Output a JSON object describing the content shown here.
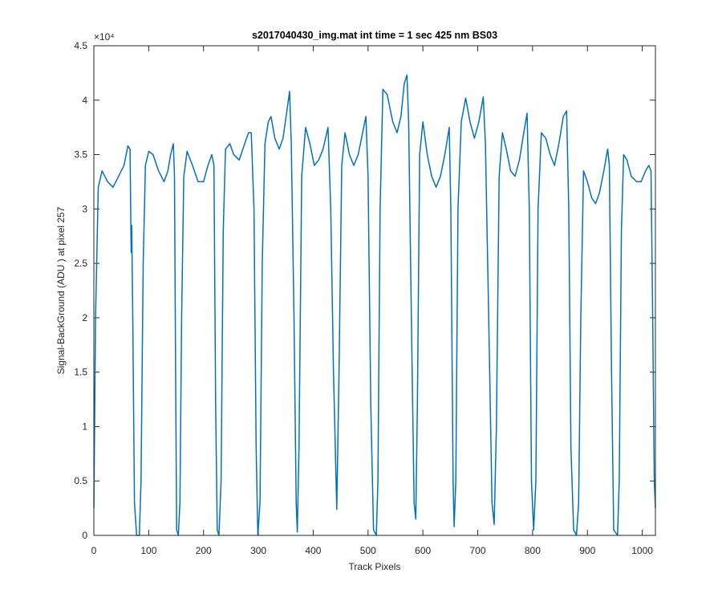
{
  "chart_data": {
    "type": "line",
    "title": "s2017040430_img.mat int time = 1 sec  425 nm BS03",
    "x_label": "Track Pixels",
    "y_label": "Signal-BackGround (ADU ) at pixel 257",
    "y_exponent_label": "×10⁴",
    "color": "#0072bd",
    "xlim": [
      0,
      1024
    ],
    "xticks": [
      0,
      100,
      200,
      300,
      400,
      500,
      600,
      700,
      800,
      900,
      1000
    ],
    "ylim": [
      0,
      45000
    ],
    "yticks": [
      {
        "value": 0,
        "label": "0"
      },
      {
        "value": 5000,
        "label": "0.5"
      },
      {
        "value": 10000,
        "label": "1"
      },
      {
        "value": 15000,
        "label": "1.5"
      },
      {
        "value": 20000,
        "label": "2"
      },
      {
        "value": 25000,
        "label": "2.5"
      },
      {
        "value": 30000,
        "label": "3"
      },
      {
        "value": 35000,
        "label": "3.5"
      },
      {
        "value": 40000,
        "label": "4"
      },
      {
        "value": 45000,
        "label": "4.5"
      }
    ],
    "x": [
      0,
      3,
      8,
      15,
      25,
      35,
      45,
      55,
      62,
      66,
      68,
      69,
      71,
      74,
      78,
      83,
      86,
      90,
      94,
      100,
      108,
      118,
      128,
      135,
      140,
      145,
      147,
      149,
      151,
      154,
      157,
      160,
      164,
      170,
      180,
      190,
      200,
      208,
      215,
      219,
      222,
      225,
      228,
      232,
      236,
      240,
      248,
      255,
      265,
      275,
      282,
      287,
      292,
      296,
      299,
      303,
      307,
      312,
      318,
      323,
      330,
      338,
      345,
      352,
      357,
      360,
      365,
      369,
      371,
      374,
      379,
      386,
      394,
      402,
      410,
      418,
      427,
      432,
      437,
      443,
      447,
      452,
      458,
      466,
      474,
      482,
      490,
      496,
      500,
      505,
      510,
      515,
      518,
      522,
      527,
      535,
      545,
      553,
      560,
      566,
      571,
      574,
      579,
      584,
      587,
      590,
      594,
      600,
      608,
      616,
      624,
      632,
      640,
      648,
      651,
      655,
      657,
      660,
      664,
      670,
      678,
      686,
      694,
      702,
      710,
      714,
      720,
      726,
      730,
      734,
      739,
      745,
      752,
      760,
      768,
      776,
      784,
      790,
      794,
      798,
      802,
      806,
      810,
      816,
      824,
      832,
      840,
      848,
      856,
      862,
      866,
      870,
      875,
      880,
      884,
      888,
      893,
      900,
      908,
      915,
      922,
      930,
      937,
      940,
      944,
      948,
      955,
      958,
      962,
      966,
      972,
      980,
      990,
      998,
      1006,
      1012,
      1016,
      1019,
      1022,
      1024
    ],
    "values": [
      2500,
      20000,
      32000,
      33500,
      32500,
      32000,
      33000,
      34000,
      35800,
      35500,
      26000,
      28500,
      20000,
      3000,
      0,
      0,
      5000,
      25000,
      34000,
      35300,
      35000,
      33500,
      32500,
      33500,
      35000,
      36000,
      33000,
      15000,
      500,
      0,
      3000,
      20000,
      33000,
      35300,
      34000,
      32500,
      32500,
      34000,
      35000,
      34000,
      12000,
      500,
      0,
      5000,
      28000,
      35500,
      36000,
      35000,
      34500,
      36000,
      37000,
      37000,
      30000,
      8000,
      0,
      3000,
      25000,
      36000,
      38000,
      38500,
      36500,
      35500,
      36500,
      39000,
      40800,
      36000,
      20000,
      3000,
      300,
      8000,
      33000,
      37500,
      36000,
      34000,
      34500,
      35500,
      37500,
      30000,
      15000,
      2400,
      15000,
      34000,
      37000,
      35000,
      34000,
      35000,
      37000,
      38500,
      33000,
      12000,
      500,
      0,
      5000,
      30000,
      41000,
      40500,
      38000,
      37000,
      38500,
      41500,
      42300,
      38000,
      20000,
      3000,
      1500,
      12000,
      35000,
      38000,
      35000,
      33000,
      32000,
      33000,
      35000,
      37500,
      30000,
      5000,
      800,
      5000,
      30000,
      38000,
      40200,
      38000,
      36500,
      38000,
      40300,
      36000,
      20000,
      3000,
      1000,
      10000,
      33000,
      37000,
      35500,
      33500,
      33000,
      34500,
      37000,
      38800,
      30000,
      5000,
      500,
      5000,
      30000,
      37000,
      36500,
      35000,
      34000,
      36000,
      38500,
      39000,
      30000,
      8000,
      500,
      0,
      3000,
      20000,
      33500,
      32500,
      31000,
      30500,
      31500,
      33500,
      35500,
      34000,
      15000,
      500,
      0,
      5000,
      28000,
      35000,
      34500,
      33000,
      32500,
      32500,
      33500,
      34000,
      33500,
      20000,
      5000,
      2500
    ]
  }
}
